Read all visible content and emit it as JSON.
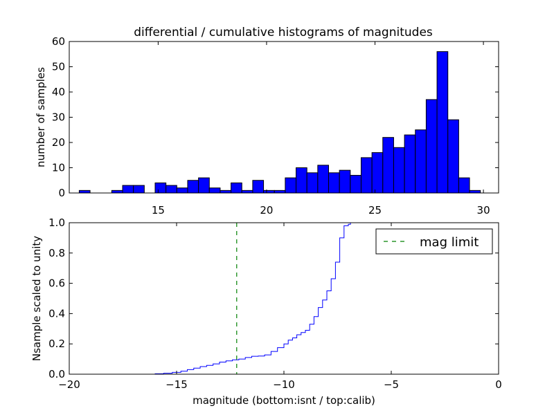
{
  "chart_data": [
    {
      "type": "bar",
      "title": "differential / cumulative histograms of magnitudes",
      "xlabel": "",
      "ylabel": "number of samples",
      "xlim": [
        10.9,
        30.7
      ],
      "ylim": [
        0,
        60
      ],
      "xticks": [
        "15",
        "20",
        "25",
        "30"
      ],
      "yticks": [
        "0",
        "10",
        "20",
        "30",
        "40",
        "50",
        "60"
      ],
      "bar_color": "#0000ff",
      "bins": [
        {
          "x0": 11.36,
          "x1": 11.86,
          "value": 1
        },
        {
          "x0": 11.86,
          "x1": 12.36,
          "value": 0
        },
        {
          "x0": 12.36,
          "x1": 12.86,
          "value": 0
        },
        {
          "x0": 12.86,
          "x1": 13.36,
          "value": 1
        },
        {
          "x0": 13.36,
          "x1": 13.86,
          "value": 3
        },
        {
          "x0": 13.86,
          "x1": 14.36,
          "value": 3
        },
        {
          "x0": 14.36,
          "x1": 14.86,
          "value": 0
        },
        {
          "x0": 14.86,
          "x1": 15.36,
          "value": 4
        },
        {
          "x0": 15.36,
          "x1": 15.86,
          "value": 3
        },
        {
          "x0": 15.86,
          "x1": 16.36,
          "value": 2
        },
        {
          "x0": 16.36,
          "x1": 16.86,
          "value": 5
        },
        {
          "x0": 16.86,
          "x1": 17.36,
          "value": 6
        },
        {
          "x0": 17.36,
          "x1": 17.86,
          "value": 2
        },
        {
          "x0": 17.86,
          "x1": 18.36,
          "value": 1
        },
        {
          "x0": 18.36,
          "x1": 18.86,
          "value": 4
        },
        {
          "x0": 18.86,
          "x1": 19.36,
          "value": 1
        },
        {
          "x0": 19.36,
          "x1": 19.86,
          "value": 5
        },
        {
          "x0": 19.86,
          "x1": 20.36,
          "value": 1
        },
        {
          "x0": 20.36,
          "x1": 20.86,
          "value": 1
        },
        {
          "x0": 20.86,
          "x1": 21.36,
          "value": 6
        },
        {
          "x0": 21.36,
          "x1": 21.86,
          "value": 10
        },
        {
          "x0": 21.86,
          "x1": 22.36,
          "value": 8
        },
        {
          "x0": 22.36,
          "x1": 22.86,
          "value": 11
        },
        {
          "x0": 22.86,
          "x1": 23.36,
          "value": 8
        },
        {
          "x0": 23.36,
          "x1": 23.86,
          "value": 9
        },
        {
          "x0": 23.86,
          "x1": 24.36,
          "value": 7
        },
        {
          "x0": 24.36,
          "x1": 24.86,
          "value": 14
        },
        {
          "x0": 24.86,
          "x1": 25.36,
          "value": 16
        },
        {
          "x0": 25.36,
          "x1": 25.86,
          "value": 22
        },
        {
          "x0": 25.86,
          "x1": 26.36,
          "value": 18
        },
        {
          "x0": 26.36,
          "x1": 26.86,
          "value": 23
        },
        {
          "x0": 26.86,
          "x1": 27.36,
          "value": 25
        },
        {
          "x0": 27.36,
          "x1": 27.86,
          "value": 37
        },
        {
          "x0": 27.86,
          "x1": 28.36,
          "value": 56
        },
        {
          "x0": 28.36,
          "x1": 28.86,
          "value": 29
        },
        {
          "x0": 28.86,
          "x1": 29.36,
          "value": 6
        },
        {
          "x0": 29.36,
          "x1": 29.86,
          "value": 1
        }
      ]
    },
    {
      "type": "line",
      "title": "",
      "xlabel": "magnitude (bottom:isnt / top:calib)",
      "ylabel": "Nsample scaled to unity",
      "xlim": [
        -20,
        0
      ],
      "ylim": [
        0,
        1.0
      ],
      "xticks": [
        "−20",
        "−15",
        "−10",
        "−5",
        "0"
      ],
      "yticks": [
        "0.0",
        "0.2",
        "0.4",
        "0.6",
        "0.8",
        "1.0"
      ],
      "legend": {
        "placement": "top-right",
        "entries": [
          "mag limit"
        ]
      },
      "series": [
        {
          "style": "step",
          "color": "#0000ff",
          "x": [
            -20.0,
            -16.0,
            -15.6,
            -15.2,
            -14.8,
            -14.5,
            -14.2,
            -13.9,
            -13.6,
            -13.3,
            -13.0,
            -12.7,
            -12.4,
            -12.1,
            -11.8,
            -11.5,
            -11.2,
            -10.9,
            -10.6,
            -10.3,
            -10.0,
            -9.8,
            -9.6,
            -9.4,
            -9.2,
            -9.0,
            -8.8,
            -8.6,
            -8.4,
            -8.2,
            -8.0,
            -7.8,
            -7.6,
            -7.4,
            -7.2,
            -7.0,
            -6.9
          ],
          "y": [
            0.0,
            0.003,
            0.006,
            0.012,
            0.02,
            0.03,
            0.04,
            0.05,
            0.058,
            0.068,
            0.08,
            0.088,
            0.095,
            0.1,
            0.11,
            0.118,
            0.12,
            0.127,
            0.15,
            0.175,
            0.2,
            0.225,
            0.24,
            0.26,
            0.275,
            0.29,
            0.33,
            0.38,
            0.44,
            0.49,
            0.55,
            0.63,
            0.74,
            0.9,
            0.98,
            0.99,
            1.0
          ]
        },
        {
          "name": "mag limit",
          "style": "vline-dashed",
          "color": "#008000",
          "x": -12.2
        }
      ]
    }
  ]
}
